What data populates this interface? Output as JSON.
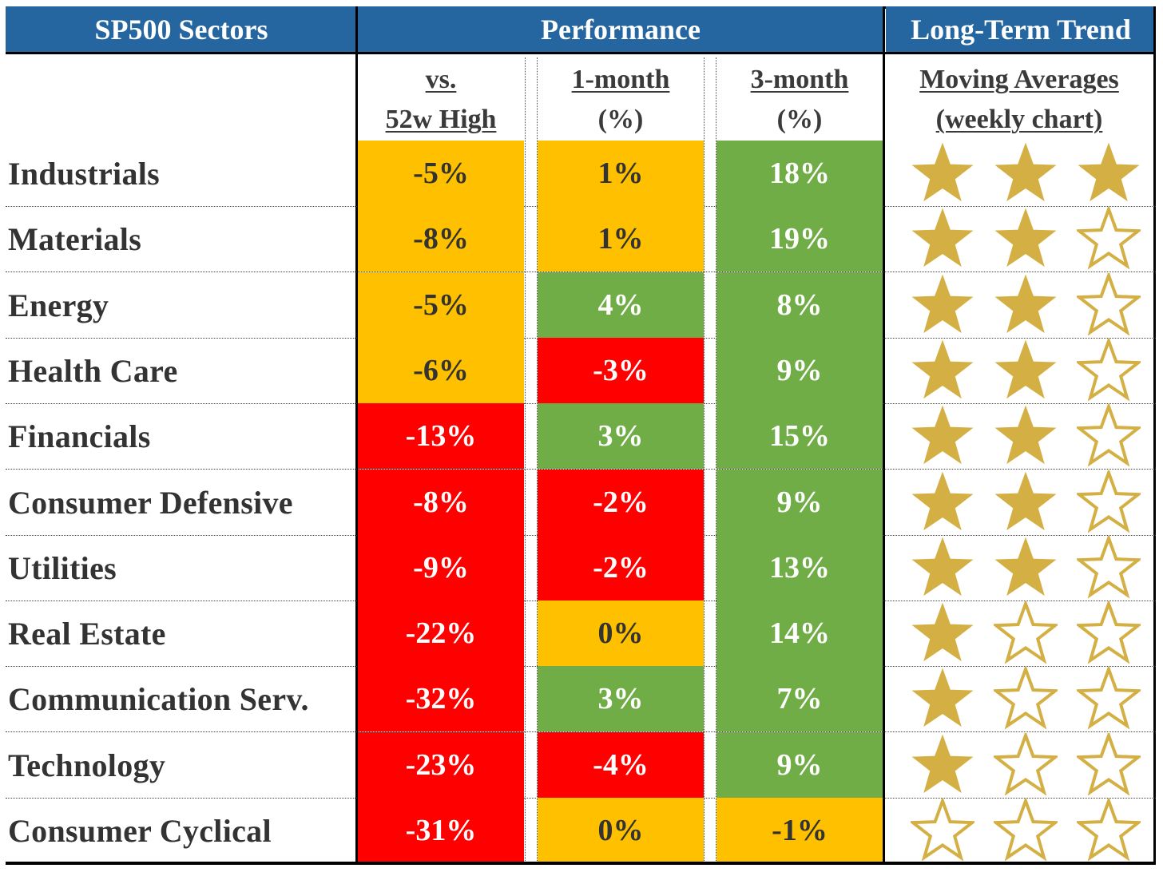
{
  "colors": {
    "header_bg": "#2566a0",
    "orange": "#ffc000",
    "green": "#70ad47",
    "red": "#ff0000",
    "star_gold": "#d4b044",
    "dark_text": "#333333",
    "white_text": "#ffffff"
  },
  "header": {
    "sectors": "SP500 Sectors",
    "performance": "Performance",
    "trend": "Long-Term Trend"
  },
  "subheader": {
    "col1_line1": "vs.",
    "col1_line2": "52w High",
    "col2_line1": "1-month",
    "col2_line2": "(%)",
    "col3_line1": "3-month",
    "col3_line2": "(%)",
    "col4_line1": "Moving Averages",
    "col4_line2": "(weekly chart)"
  },
  "rows": [
    {
      "sector": "Industrials",
      "vs52": "-5%",
      "vs52_color": "orange",
      "m1": "1%",
      "m1_color": "orange",
      "m3": "18%",
      "m3_color": "green",
      "stars": 3
    },
    {
      "sector": "Materials",
      "vs52": "-8%",
      "vs52_color": "orange",
      "m1": "1%",
      "m1_color": "orange",
      "m3": "19%",
      "m3_color": "green",
      "stars": 2
    },
    {
      "sector": "Energy",
      "vs52": "-5%",
      "vs52_color": "orange",
      "m1": "4%",
      "m1_color": "green",
      "m3": "8%",
      "m3_color": "green",
      "stars": 2
    },
    {
      "sector": "Health Care",
      "vs52": "-6%",
      "vs52_color": "orange",
      "m1": "-3%",
      "m1_color": "red",
      "m3": "9%",
      "m3_color": "green",
      "stars": 2
    },
    {
      "sector": "Financials",
      "vs52": "-13%",
      "vs52_color": "red",
      "m1": "3%",
      "m1_color": "green",
      "m3": "15%",
      "m3_color": "green",
      "stars": 2
    },
    {
      "sector": "Consumer Defensive",
      "vs52": "-8%",
      "vs52_color": "red",
      "m1": "-2%",
      "m1_color": "red",
      "m3": "9%",
      "m3_color": "green",
      "stars": 2
    },
    {
      "sector": "Utilities",
      "vs52": "-9%",
      "vs52_color": "red",
      "m1": "-2%",
      "m1_color": "red",
      "m3": "13%",
      "m3_color": "green",
      "stars": 2
    },
    {
      "sector": "Real Estate",
      "vs52": "-22%",
      "vs52_color": "red",
      "m1": "0%",
      "m1_color": "orange",
      "m3": "14%",
      "m3_color": "green",
      "stars": 1
    },
    {
      "sector": "Communication Serv.",
      "vs52": "-32%",
      "vs52_color": "red",
      "m1": "3%",
      "m1_color": "green",
      "m3": "7%",
      "m3_color": "green",
      "stars": 1
    },
    {
      "sector": "Technology",
      "vs52": "-23%",
      "vs52_color": "red",
      "m1": "-4%",
      "m1_color": "red",
      "m3": "9%",
      "m3_color": "green",
      "stars": 1
    },
    {
      "sector": "Consumer Cyclical",
      "vs52": "-31%",
      "vs52_color": "red",
      "m1": "0%",
      "m1_color": "orange",
      "m3": "-1%",
      "m3_color": "orange",
      "stars": 0
    }
  ]
}
